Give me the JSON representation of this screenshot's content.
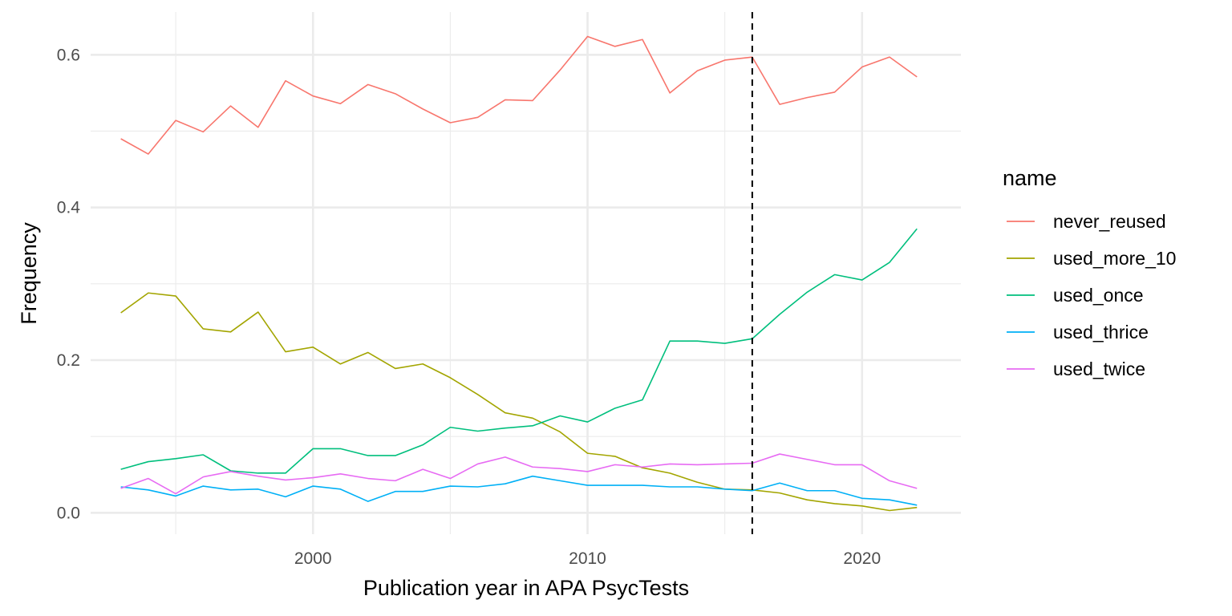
{
  "chart_data": {
    "type": "line",
    "title": "",
    "xlabel": "Publication year in APA PsycTests",
    "ylabel": "Frequency",
    "xlim": [
      1991.9,
      2023.6
    ],
    "ylim": [
      -0.028,
      0.656
    ],
    "x_ticks": [
      2000,
      2010,
      2020
    ],
    "x_tick_labels": [
      "2000",
      "2010",
      "2020"
    ],
    "y_ticks": [
      0.0,
      0.2,
      0.4,
      0.6
    ],
    "y_tick_labels": [
      "0.0",
      "0.2",
      "0.4",
      "0.6"
    ],
    "x_minor_ticks": [
      1995,
      2005,
      2015
    ],
    "y_minor_ticks": [
      0.1,
      0.3,
      0.5
    ],
    "grid": true,
    "legend_title": "name",
    "legend_position": "right",
    "vline": {
      "x": 2016,
      "style": "dashed",
      "color": "#000000"
    },
    "x": [
      1993,
      1994,
      1995,
      1996,
      1997,
      1998,
      1999,
      2000,
      2001,
      2002,
      2003,
      2004,
      2005,
      2006,
      2007,
      2008,
      2009,
      2010,
      2011,
      2012,
      2013,
      2014,
      2015,
      2016,
      2017,
      2018,
      2019,
      2020,
      2021,
      2022
    ],
    "series": [
      {
        "name": "never_reused",
        "color": "#F8766D",
        "values": [
          0.49,
          0.47,
          0.514,
          0.499,
          0.533,
          0.505,
          0.566,
          0.546,
          0.536,
          0.561,
          0.549,
          0.529,
          0.511,
          0.518,
          0.541,
          0.54,
          0.58,
          0.624,
          0.611,
          0.62,
          0.55,
          0.579,
          0.593,
          0.597,
          0.535,
          0.544,
          0.551,
          0.584,
          0.597,
          0.571
        ]
      },
      {
        "name": "used_more_10",
        "color": "#A3A500",
        "values": [
          0.262,
          0.288,
          0.284,
          0.241,
          0.237,
          0.263,
          0.211,
          0.217,
          0.195,
          0.21,
          0.189,
          0.195,
          0.177,
          0.155,
          0.131,
          0.124,
          0.106,
          0.078,
          0.074,
          0.059,
          0.052,
          0.04,
          0.031,
          0.03,
          0.026,
          0.017,
          0.012,
          0.009,
          0.003,
          0.007
        ]
      },
      {
        "name": "used_once",
        "color": "#00BF7D",
        "values": [
          0.057,
          0.067,
          0.071,
          0.076,
          0.055,
          0.052,
          0.052,
          0.084,
          0.084,
          0.075,
          0.075,
          0.089,
          0.112,
          0.107,
          0.111,
          0.114,
          0.127,
          0.119,
          0.137,
          0.148,
          0.225,
          0.225,
          0.222,
          0.228,
          0.26,
          0.289,
          0.312,
          0.305,
          0.328,
          0.372
        ]
      },
      {
        "name": "used_thrice",
        "color": "#00B0F6",
        "values": [
          0.034,
          0.03,
          0.022,
          0.035,
          0.03,
          0.031,
          0.021,
          0.035,
          0.031,
          0.015,
          0.028,
          0.028,
          0.035,
          0.034,
          0.038,
          0.048,
          0.042,
          0.036,
          0.036,
          0.036,
          0.034,
          0.034,
          0.031,
          0.029,
          0.039,
          0.029,
          0.029,
          0.019,
          0.017,
          0.01
        ]
      },
      {
        "name": "used_twice",
        "color": "#E76BF3",
        "values": [
          0.032,
          0.045,
          0.025,
          0.047,
          0.054,
          0.048,
          0.043,
          0.046,
          0.051,
          0.045,
          0.042,
          0.057,
          0.045,
          0.064,
          0.073,
          0.06,
          0.058,
          0.054,
          0.063,
          0.06,
          0.064,
          0.063,
          0.064,
          0.065,
          0.077,
          0.07,
          0.063,
          0.063,
          0.042,
          0.032
        ]
      }
    ]
  }
}
